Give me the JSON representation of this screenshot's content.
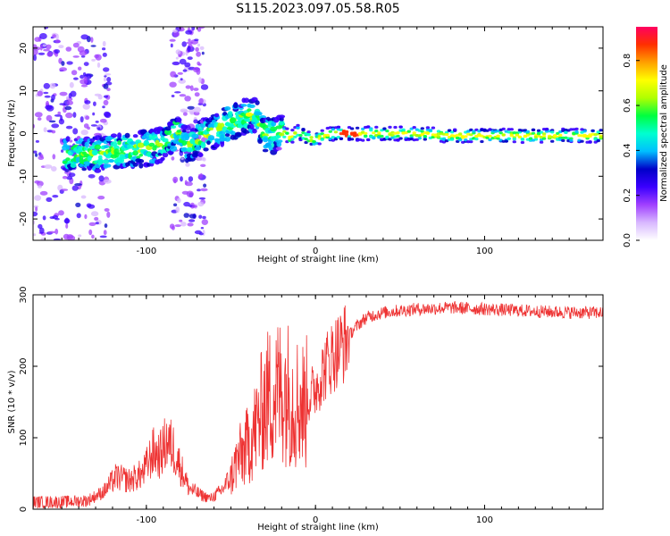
{
  "figure_title": "S115.2023.097.05.58.R05",
  "chart_data": [
    {
      "type": "heatmap",
      "panel": "spectrogram",
      "xlabel": "Height of straight line (km)",
      "ylabel": "Frequency (Hz)",
      "xlim": [
        -167,
        170
      ],
      "ylim": [
        -25,
        25
      ],
      "xticks": [
        -100,
        0,
        100
      ],
      "yticks": [
        -20,
        -10,
        0,
        10,
        20
      ],
      "colorbar": {
        "label": "Normalized spectral amplitude",
        "range": [
          0.0,
          0.95
        ],
        "ticks": [
          0.0,
          0.2,
          0.4,
          0.6,
          0.8
        ],
        "colormap": [
          "#ffffff",
          "#d8b8ff",
          "#a040ff",
          "#3a00ff",
          "#0000c8",
          "#00bfff",
          "#00ffd0",
          "#00ff40",
          "#b0ff00",
          "#ffff00",
          "#ffa000",
          "#ff3000",
          "#ff0060"
        ]
      },
      "ridge": {
        "x": [
          -145,
          -130,
          -115,
          -100,
          -90,
          -82,
          -76,
          -70,
          -60,
          -50,
          -42,
          -36,
          -30,
          -25,
          -20,
          -15,
          -10,
          -5,
          0,
          5,
          10,
          20,
          40,
          60,
          80,
          100,
          120,
          140,
          170
        ],
        "frequency": [
          -5,
          -5,
          -4,
          -3.5,
          -2.5,
          1,
          -3,
          -1.5,
          0.5,
          2.5,
          4,
          4.5,
          0,
          -0.5,
          0.5,
          -1,
          0.5,
          -1,
          -1.5,
          -0.5,
          0,
          0,
          0,
          0,
          -0.5,
          -0.5,
          -0.5,
          -0.5,
          -0.5
        ]
      },
      "peak_amplitude_x": 20
    },
    {
      "type": "line",
      "panel": "snr",
      "xlabel": "Height of straight line (km)",
      "ylabel": "SNR (10 * v/v)",
      "xlim": [
        -167,
        170
      ],
      "ylim": [
        0,
        300
      ],
      "xticks": [
        -100,
        0,
        100
      ],
      "yticks": [
        0,
        100,
        200,
        300
      ],
      "color": "#ee3333",
      "series": [
        {
          "x": [
            -167,
            -150,
            -135,
            -125,
            -118,
            -110,
            -102,
            -96,
            -92,
            -88,
            -84,
            -80,
            -75,
            -68,
            -62,
            -56,
            -50,
            -46,
            -42,
            -38,
            -34,
            -30,
            -26,
            -22,
            -18,
            -14,
            -10,
            -6,
            -3,
            0,
            3,
            6,
            10,
            14,
            18,
            22,
            26,
            30,
            35,
            40,
            50,
            60,
            80,
            100,
            120,
            140,
            160,
            170
          ],
          "values": [
            10,
            10,
            12,
            25,
            45,
            40,
            50,
            80,
            75,
            95,
            85,
            60,
            30,
            20,
            15,
            25,
            45,
            70,
            80,
            100,
            120,
            150,
            160,
            165,
            170,
            155,
            150,
            145,
            160,
            170,
            185,
            200,
            215,
            225,
            235,
            250,
            260,
            268,
            272,
            275,
            278,
            280,
            282,
            280,
            278,
            276,
            275,
            275
          ]
        }
      ]
    }
  ]
}
